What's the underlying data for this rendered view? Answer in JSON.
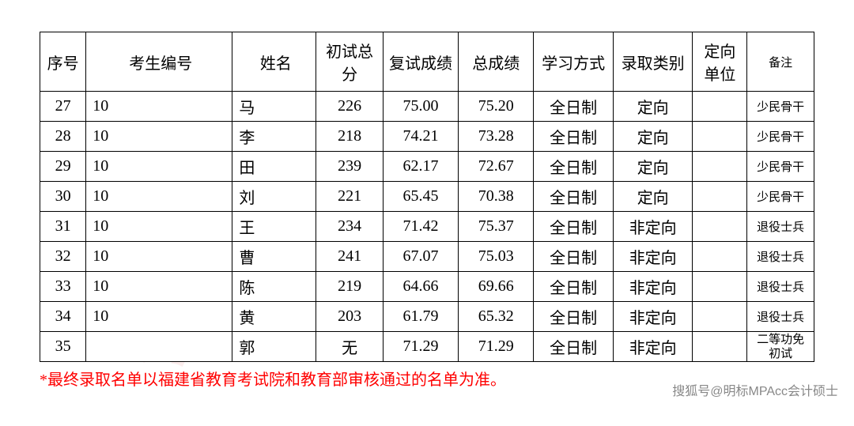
{
  "watermark": "明标 MPAcc",
  "table": {
    "headers": {
      "seq": "序号",
      "id": "考生编号",
      "name": "姓名",
      "score1": "初试总分",
      "score2": "复试成绩",
      "total": "总成绩",
      "study": "学习方式",
      "admit": "录取类别",
      "unit": "定向单位",
      "remark": "备注"
    },
    "rows": [
      {
        "seq": "27",
        "id": "10",
        "name": "马",
        "score1": "226",
        "score2": "75.00",
        "total": "75.20",
        "study": "全日制",
        "admit": "定向",
        "unit": "",
        "remark": "少民骨干"
      },
      {
        "seq": "28",
        "id": "10",
        "name": "李",
        "score1": "218",
        "score2": "74.21",
        "total": "73.28",
        "study": "全日制",
        "admit": "定向",
        "unit": "",
        "remark": "少民骨干"
      },
      {
        "seq": "29",
        "id": "10",
        "name": "田",
        "score1": "239",
        "score2": "62.17",
        "total": "72.67",
        "study": "全日制",
        "admit": "定向",
        "unit": "",
        "remark": "少民骨干"
      },
      {
        "seq": "30",
        "id": "10",
        "name": "刘",
        "score1": "221",
        "score2": "65.45",
        "total": "70.38",
        "study": "全日制",
        "admit": "定向",
        "unit": "",
        "remark": "少民骨干"
      },
      {
        "seq": "31",
        "id": "10",
        "name": "王",
        "score1": "234",
        "score2": "71.42",
        "total": "75.37",
        "study": "全日制",
        "admit": "非定向",
        "unit": "",
        "remark": "退役士兵"
      },
      {
        "seq": "32",
        "id": "10",
        "name": "曹",
        "score1": "241",
        "score2": "67.07",
        "total": "75.03",
        "study": "全日制",
        "admit": "非定向",
        "unit": "",
        "remark": "退役士兵"
      },
      {
        "seq": "33",
        "id": "10",
        "name": "陈",
        "score1": "219",
        "score2": "64.66",
        "total": "69.66",
        "study": "全日制",
        "admit": "非定向",
        "unit": "",
        "remark": "退役士兵"
      },
      {
        "seq": "34",
        "id": "10",
        "name": "黄",
        "score1": "203",
        "score2": "61.79",
        "total": "65.32",
        "study": "全日制",
        "admit": "非定向",
        "unit": "",
        "remark": "退役士兵"
      },
      {
        "seq": "35",
        "id": "",
        "name": "郭",
        "score1": "无",
        "score2": "71.29",
        "total": "71.29",
        "study": "全日制",
        "admit": "非定向",
        "unit": "",
        "remark": "二等功免初试"
      }
    ]
  },
  "footnote": "*最终录取名单以福建省教育考试院和教育部审核通过的名单为准。",
  "credit": "搜狐号@明标MPAcc会计硕士"
}
